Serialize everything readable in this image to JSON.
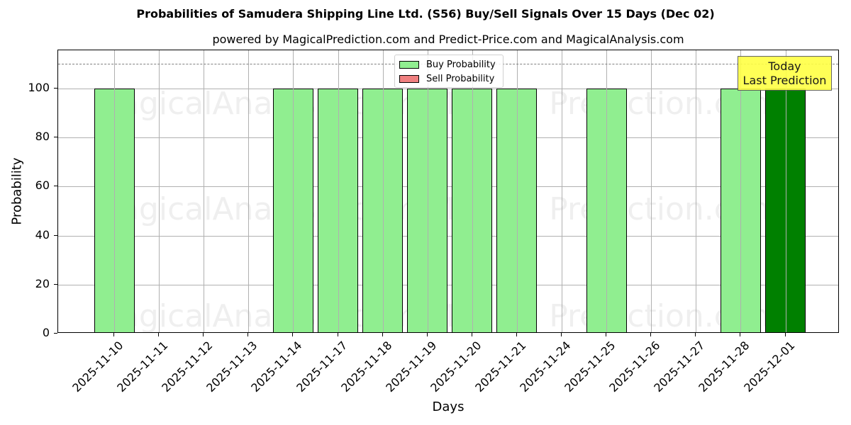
{
  "title": "Probabilities of Samudera Shipping Line Ltd. (S56) Buy/Sell Signals Over 15 Days (Dec 02)",
  "subtitle": "powered by MagicalPrediction.com and Predict-Price.com and MagicalAnalysis.com",
  "watermarks": [
    "MagicalAnalysis.com",
    "Magica Prediction.com"
  ],
  "annotation": {
    "line1": "Today",
    "line2": "Last Prediction",
    "color": "#ffff44"
  },
  "legend": [
    {
      "label": "Buy Probability",
      "color": "#90ee90"
    },
    {
      "label": "Sell Probability",
      "color": "#f08080"
    }
  ],
  "colors": {
    "buy": "#90ee90",
    "today": "#008000",
    "sell": "#f08080"
  },
  "chart_data": {
    "type": "bar",
    "title": "Probabilities of Samudera Shipping Line Ltd. (S56) Buy/Sell Signals Over 15 Days (Dec 02)",
    "subtitle": "powered by MagicalPrediction.com and Predict-Price.com and MagicalAnalysis.com",
    "xlabel": "Days",
    "ylabel": "Probability",
    "ylim": [
      0,
      115
    ],
    "yticks": [
      0,
      20,
      40,
      60,
      80,
      100
    ],
    "reference_line": {
      "y": 110,
      "style": "dashed"
    },
    "grid": true,
    "legend_position": "upper center",
    "categories": [
      "2025-11-10",
      "2025-11-11",
      "2025-11-12",
      "2025-11-13",
      "2025-11-14",
      "2025-11-17",
      "2025-11-18",
      "2025-11-19",
      "2025-11-20",
      "2025-11-21",
      "2025-11-24",
      "2025-11-25",
      "2025-11-26",
      "2025-11-27",
      "2025-11-28",
      "2025-12-01"
    ],
    "series": [
      {
        "name": "Buy Probability",
        "values": [
          100,
          0,
          0,
          0,
          100,
          100,
          100,
          100,
          100,
          100,
          0,
          100,
          0,
          0,
          100,
          100
        ]
      },
      {
        "name": "Sell Probability",
        "values": [
          0,
          0,
          0,
          0,
          0,
          0,
          0,
          0,
          0,
          0,
          0,
          0,
          0,
          0,
          0,
          0
        ]
      }
    ],
    "highlight": {
      "category": "2025-12-01",
      "label": "Today / Last Prediction",
      "color": "#008000"
    }
  }
}
